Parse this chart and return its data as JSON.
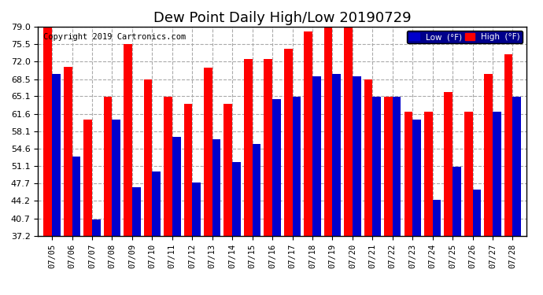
{
  "title": "Dew Point Daily High/Low 20190729",
  "copyright": "Copyright 2019 Cartronics.com",
  "dates": [
    "07/05",
    "07/06",
    "07/07",
    "07/08",
    "07/09",
    "07/10",
    "07/11",
    "07/12",
    "07/13",
    "07/14",
    "07/15",
    "07/16",
    "07/17",
    "07/18",
    "07/19",
    "07/20",
    "07/21",
    "07/22",
    "07/23",
    "07/24",
    "07/25",
    "07/26",
    "07/27",
    "07/28"
  ],
  "high": [
    79.0,
    71.0,
    60.5,
    65.0,
    75.5,
    68.5,
    65.0,
    63.5,
    70.8,
    63.5,
    72.5,
    72.5,
    74.5,
    78.0,
    79.5,
    79.5,
    68.5,
    65.0,
    62.0,
    62.0,
    66.0,
    62.0,
    69.5,
    73.5
  ],
  "low": [
    69.5,
    53.0,
    40.5,
    60.5,
    47.0,
    50.0,
    57.0,
    47.8,
    56.5,
    52.0,
    55.5,
    64.5,
    65.0,
    69.0,
    69.5,
    69.0,
    65.0,
    65.0,
    60.5,
    44.5,
    51.0,
    46.5,
    62.0,
    65.0
  ],
  "high_color": "#ff0000",
  "low_color": "#0000cc",
  "bg_color": "#ffffff",
  "plot_bg": "#ffffff",
  "grid_color": "#aaaaaa",
  "ymin": 37.2,
  "ymax": 79.0,
  "yticks": [
    37.2,
    40.7,
    44.2,
    47.7,
    51.1,
    54.6,
    58.1,
    61.6,
    65.1,
    68.5,
    72.0,
    75.5,
    79.0
  ],
  "title_fontsize": 13,
  "legend_low_label": "Low  (°F)",
  "legend_high_label": "High  (°F)"
}
